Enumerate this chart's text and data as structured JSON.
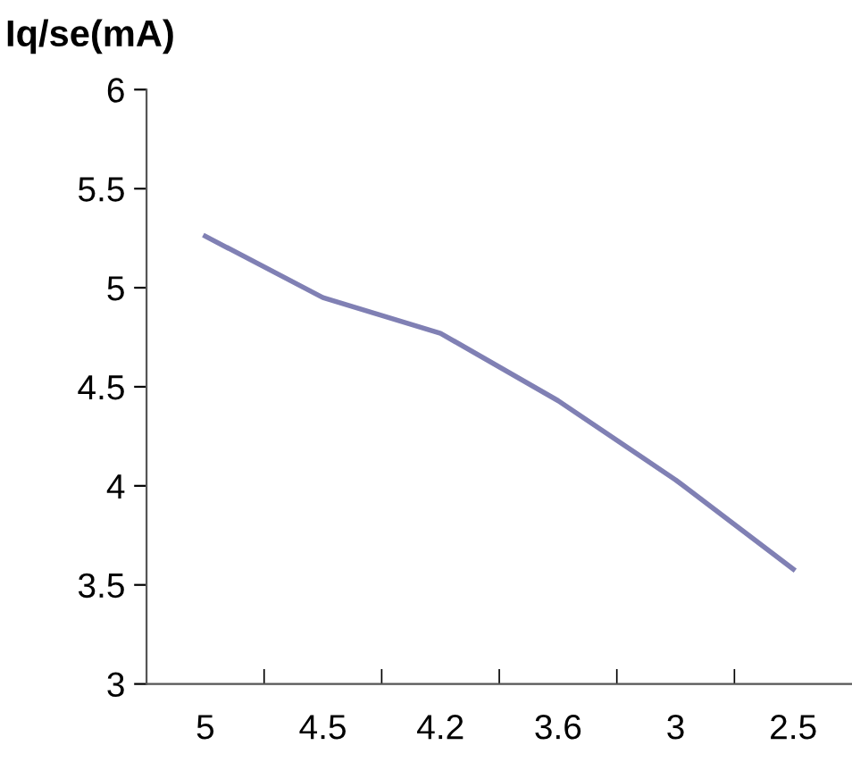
{
  "chart_data": {
    "type": "line",
    "ylabel": "Iq/se(mA)",
    "categories": [
      "5",
      "4.5",
      "4.2",
      "3.6",
      "3",
      "2.5"
    ],
    "series": [
      {
        "color": "#8080b4",
        "values": [
          5.26,
          4.95,
          4.77,
          4.43,
          4.03,
          3.58
        ]
      }
    ],
    "ylim": [
      3,
      6
    ],
    "yticks": [
      3,
      3.5,
      4,
      4.5,
      5,
      5.5,
      6
    ],
    "grid": false,
    "legend": false,
    "marker": "none",
    "line_style": "solid"
  }
}
